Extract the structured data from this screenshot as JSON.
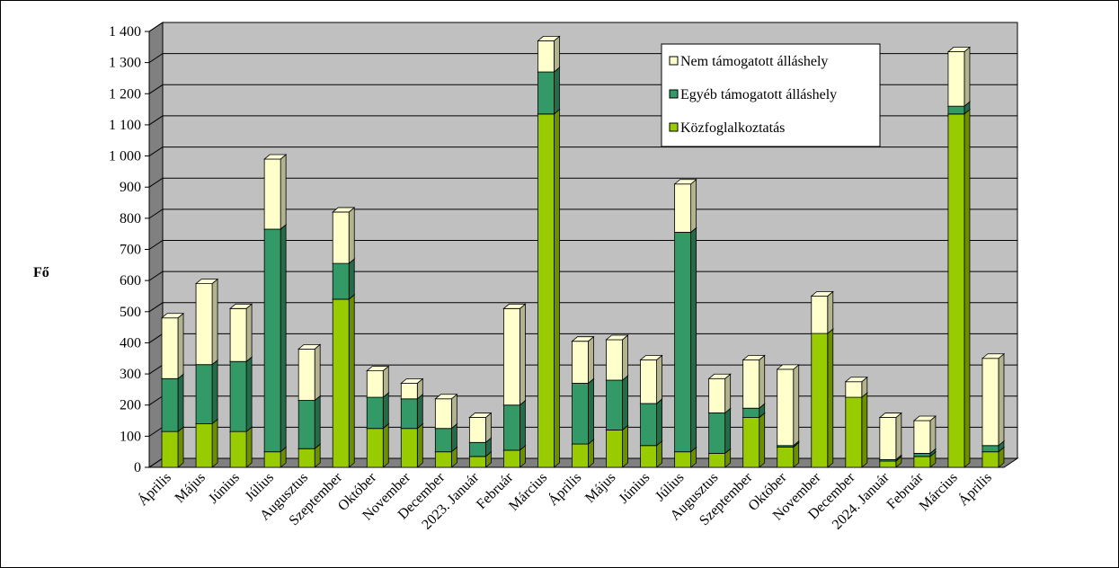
{
  "colors": {
    "kozfoglalkoztatas": "#99cc00",
    "egyeb": "#339966",
    "nem": "#ffffcc",
    "plot_bg": "#c0c0c0",
    "wall_side": "#808080",
    "grid": "#000000"
  },
  "chart_data": {
    "type": "bar",
    "stacked": true,
    "three_d": true,
    "ylabel": "Fő",
    "ylim": [
      0,
      1400
    ],
    "yticks": [
      0,
      100,
      200,
      300,
      400,
      500,
      600,
      700,
      800,
      900,
      1000,
      1100,
      1200,
      1300,
      1400
    ],
    "ytick_labels": [
      "0",
      "100",
      "200",
      "300",
      "400",
      "500",
      "600",
      "700",
      "800",
      "900",
      "1 000",
      "1 100",
      "1 200",
      "1 300",
      "1 400"
    ],
    "grid": true,
    "legend_position": "top-right",
    "categories": [
      "Április",
      "Május",
      "Június",
      "Július",
      "Augusztus",
      "Szeptember",
      "Október",
      "November",
      "December",
      "2023. Január",
      "Február",
      "Március",
      "Április",
      "Május",
      "Június",
      "Július",
      "Augusztus",
      "Szeptember",
      "Október",
      "November",
      "December",
      "2024. Január",
      "Február",
      "Március",
      "Április"
    ],
    "series": [
      {
        "name": "Közfoglalkoztatás",
        "color_key": "kozfoglalkoztatas",
        "values": [
          115,
          140,
          115,
          50,
          60,
          540,
          125,
          125,
          50,
          35,
          55,
          1135,
          75,
          120,
          70,
          50,
          45,
          160,
          65,
          430,
          225,
          20,
          35,
          1135,
          50
        ]
      },
      {
        "name": "Egyéb támogatott álláshely",
        "color_key": "egyeb",
        "values": [
          170,
          190,
          225,
          715,
          155,
          115,
          100,
          95,
          75,
          45,
          145,
          135,
          195,
          160,
          135,
          705,
          130,
          30,
          5,
          0,
          0,
          5,
          10,
          25,
          20
        ]
      },
      {
        "name": "Nem támogatott álláshely",
        "color_key": "nem",
        "values": [
          195,
          260,
          170,
          225,
          165,
          165,
          85,
          50,
          95,
          80,
          310,
          100,
          135,
          130,
          140,
          155,
          110,
          155,
          245,
          120,
          50,
          135,
          105,
          175,
          280
        ]
      }
    ]
  }
}
